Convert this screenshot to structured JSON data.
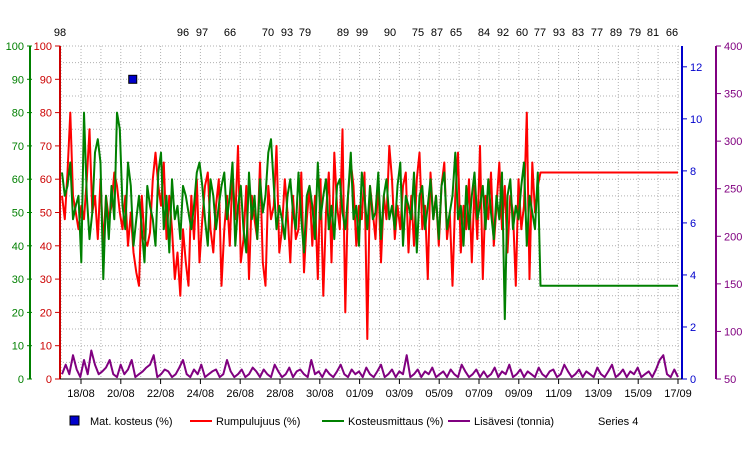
{
  "chart_data": {
    "type": "line",
    "x_tick_labels": [
      "18/08",
      "20/08",
      "22/08",
      "24/08",
      "26/08",
      "28/08",
      "30/08",
      "01/09",
      "03/09",
      "05/09",
      "07/09",
      "09/09",
      "11/09",
      "13/09",
      "15/09",
      "17/09"
    ],
    "top_labels": [
      "98",
      "96",
      "97",
      "66",
      "70",
      "93",
      "79",
      "89",
      "99",
      "90",
      "75",
      "87",
      "65",
      "84",
      "92",
      "60",
      "77",
      "93",
      "83",
      "77",
      "89",
      "79",
      "81",
      "66"
    ],
    "axes": {
      "left_outer": {
        "ylim": [
          0,
          100
        ],
        "ticks": [
          "0",
          "10",
          "20",
          "30",
          "40",
          "50",
          "60",
          "70",
          "80",
          "90",
          "100"
        ],
        "color": "#008000"
      },
      "left_inner": {
        "ylim": [
          0,
          100
        ],
        "ticks": [
          "0",
          "10",
          "20",
          "30",
          "40",
          "50",
          "60",
          "70",
          "80",
          "90",
          "100"
        ],
        "color": "#cc0000"
      },
      "right_inner": {
        "ylim": [
          0,
          12.8
        ],
        "ticks": [
          "0",
          "2",
          "4",
          "6",
          "8",
          "10",
          "12"
        ],
        "color": "#0000cc"
      },
      "right_outer": {
        "ylim": [
          50,
          400
        ],
        "ticks": [
          "50",
          "100",
          "150",
          "200",
          "250",
          "300",
          "350",
          "400"
        ],
        "color": "#800080"
      }
    },
    "grid": true,
    "legend_position": "bottom",
    "series": [
      {
        "name": "Mat. kosteus (%)",
        "color": "#0000cc",
        "marker": "square",
        "points": [
          [
            2.6,
            90
          ]
        ]
      },
      {
        "name": "Rumpulujuus (%)",
        "color": "#ff0000",
        "values": [
          55,
          48,
          62,
          80,
          55,
          50,
          45,
          52,
          48,
          60,
          75,
          50,
          55,
          42,
          60,
          40,
          55,
          48,
          52,
          62,
          58,
          50,
          45,
          55,
          40,
          50,
          38,
          32,
          28,
          55,
          42,
          40,
          44,
          60,
          68,
          58,
          52,
          65,
          42,
          55,
          45,
          30,
          38,
          25,
          45,
          35,
          28,
          55,
          42,
          60,
          35,
          48,
          58,
          62,
          45,
          38,
          52,
          60,
          28,
          45,
          55,
          40,
          62,
          48,
          70,
          35,
          42,
          58,
          30,
          55,
          48,
          42,
          65,
          35,
          28,
          58,
          48,
          52,
          70,
          38,
          45,
          60,
          50,
          35,
          55,
          42,
          45,
          62,
          32,
          48,
          58,
          40,
          55,
          30,
          60,
          25,
          50,
          62,
          35,
          68,
          52,
          45,
          75,
          20,
          55,
          65,
          58,
          40,
          52,
          48,
          62,
          12,
          58,
          50,
          42,
          60,
          35,
          55,
          48,
          70,
          60,
          42,
          52,
          45,
          58,
          62,
          38,
          55,
          40,
          60,
          68,
          45,
          52,
          30,
          62,
          48,
          55,
          40,
          58,
          65,
          42,
          50,
          28,
          55,
          68,
          38,
          52,
          45,
          60,
          35,
          58,
          42,
          70,
          30,
          55,
          48,
          62,
          40,
          52,
          65,
          45,
          58,
          38,
          55,
          50,
          28,
          60,
          45,
          52,
          80,
          30,
          65,
          50,
          58,
          62,
          62,
          62,
          62,
          62,
          62,
          62,
          62,
          62,
          62,
          62,
          62,
          62,
          62,
          62,
          62,
          62,
          62,
          62,
          62,
          62,
          62,
          62,
          62,
          62,
          62,
          62,
          62,
          62,
          62,
          62,
          62,
          62,
          62,
          62,
          62,
          62,
          62,
          62,
          62,
          62,
          62,
          62,
          62,
          62,
          62,
          62,
          62,
          62,
          62,
          62
        ]
      },
      {
        "name": "Kosteusmittaus (%)",
        "color": "#008000",
        "values": [
          62,
          55,
          58,
          65,
          48,
          52,
          55,
          35,
          80,
          55,
          42,
          50,
          68,
          72,
          65,
          30,
          55,
          42,
          58,
          48,
          80,
          75,
          52,
          45,
          65,
          58,
          40,
          48,
          55,
          45,
          35,
          58,
          52,
          48,
          40,
          62,
          68,
          45,
          55,
          38,
          60,
          48,
          52,
          42,
          58,
          55,
          50,
          45,
          52,
          62,
          65,
          58,
          48,
          40,
          60,
          55,
          45,
          52,
          58,
          62,
          48,
          55,
          65,
          40,
          52,
          58,
          45,
          38,
          62,
          48,
          55,
          42,
          60,
          50,
          55,
          68,
          72,
          58,
          45,
          52,
          48,
          42,
          55,
          60,
          50,
          45,
          62,
          48,
          38,
          55,
          58,
          52,
          42,
          65,
          48,
          55,
          60,
          45,
          52,
          42,
          58,
          60,
          50,
          45,
          55,
          68,
          48,
          52,
          40,
          62,
          55,
          45,
          58,
          48,
          50,
          62,
          42,
          55,
          60,
          48,
          52,
          45,
          58,
          65,
          40,
          55,
          52,
          48,
          62,
          38,
          55,
          58,
          45,
          52,
          60,
          48,
          55,
          42,
          58,
          62,
          45,
          50,
          55,
          68,
          48,
          52,
          40,
          58,
          45,
          55,
          62,
          48,
          52,
          58,
          45,
          60,
          50,
          42,
          55,
          48,
          62,
          18,
          55,
          60,
          45,
          52,
          48,
          58,
          65,
          40,
          55,
          50,
          45,
          62,
          28,
          28,
          28,
          28,
          28,
          28,
          28,
          28,
          28,
          28,
          28,
          28,
          28,
          28,
          28,
          28,
          28,
          28,
          28,
          28,
          28,
          28,
          28,
          28,
          28,
          28,
          28,
          28,
          28,
          28,
          28,
          28,
          28,
          28,
          28,
          28,
          28,
          28,
          28,
          28,
          28,
          28,
          28,
          28,
          28,
          28,
          28,
          28,
          28,
          28,
          28
        ]
      },
      {
        "name": "Lisävesi (tonnia)",
        "color": "#800080",
        "axis": "right_outer",
        "values": [
          55,
          65,
          55,
          75,
          60,
          52,
          70,
          55,
          80,
          65,
          55,
          58,
          62,
          70,
          55,
          52,
          65,
          55,
          60,
          70,
          52,
          55,
          58,
          62,
          65,
          75,
          52,
          55,
          60,
          58,
          52,
          55,
          62,
          70,
          55,
          52,
          60,
          55,
          65,
          52,
          55,
          58,
          60,
          52,
          55,
          70,
          58,
          52,
          55,
          60,
          52,
          55,
          62,
          58,
          52,
          60,
          55,
          52,
          65,
          58,
          52,
          55,
          62,
          52,
          58,
          60,
          55,
          52,
          70,
          55,
          58,
          52,
          60,
          55,
          52,
          58,
          65,
          55,
          52,
          60,
          55,
          58,
          52,
          62,
          55,
          52,
          58,
          65,
          52,
          55,
          60,
          52,
          58,
          55,
          75,
          52,
          55,
          60,
          52,
          58,
          55,
          62,
          52,
          55,
          58,
          52,
          60,
          55,
          52,
          65,
          58,
          52,
          55,
          60,
          52,
          58,
          52,
          55,
          62,
          52,
          58,
          55,
          65,
          52,
          55,
          60,
          52,
          58,
          55,
          52,
          62,
          55,
          52,
          58,
          60,
          52,
          55,
          65,
          58,
          52,
          55,
          60,
          52,
          58,
          55,
          52,
          62,
          55,
          52,
          58,
          65,
          52,
          55,
          60,
          52,
          58,
          55,
          62,
          52,
          55,
          58,
          52,
          60,
          70,
          75,
          55,
          52,
          60,
          52
        ]
      },
      {
        "name": "Series 4",
        "color": "#000000",
        "values": []
      }
    ]
  }
}
